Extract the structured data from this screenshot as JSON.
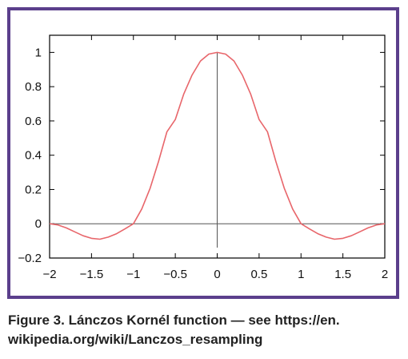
{
  "caption": {
    "line1": "Figure 3. Lánczos Kornél function — see https://en.",
    "line2": "wikipedia.org/wiki/Lanczos_resampling"
  },
  "colors": {
    "frame": "#5b3f8c",
    "curve": "#e8666b",
    "axis_line": "#555555"
  },
  "chart_data": {
    "type": "line",
    "title": "",
    "xlabel": "",
    "ylabel": "",
    "xlim": [
      -2,
      2
    ],
    "ylim": [
      -0.2,
      1.1
    ],
    "xticks": [
      "−2",
      "−1.5",
      "−1",
      "−0.5",
      "0",
      "0.5",
      "1",
      "1.5",
      "2"
    ],
    "yticks": [
      "−0.2",
      "0",
      "0.2",
      "0.4",
      "0.6",
      "0.8",
      "1"
    ],
    "grid": false,
    "zero_line": true,
    "series": [
      {
        "color": "#e8666b",
        "x": [
          -2,
          -1.9,
          -1.8,
          -1.7,
          -1.6,
          -1.5,
          -1.4,
          -1.3,
          -1.2,
          -1.1,
          -1,
          -0.9,
          -0.8,
          -0.7,
          -0.6,
          -0.5,
          -0.4,
          -0.3,
          -0.2,
          -0.1,
          0,
          0.1,
          0.2,
          0.3,
          0.4,
          0.5,
          0.6,
          0.7,
          0.8,
          0.9,
          1,
          1.1,
          1.2,
          1.3,
          1.4,
          1.5,
          1.6,
          1.7,
          1.8,
          1.9,
          2
        ],
        "y": [
          0,
          -0.007,
          -0.024,
          -0.047,
          -0.07,
          -0.085,
          -0.09,
          -0.078,
          -0.058,
          -0.03,
          0,
          0.086,
          0.208,
          0.364,
          0.536,
          0.608,
          0.756,
          0.868,
          0.95,
          0.99,
          1,
          0.99,
          0.95,
          0.868,
          0.756,
          0.608,
          0.536,
          0.364,
          0.208,
          0.086,
          0,
          -0.03,
          -0.058,
          -0.078,
          -0.09,
          -0.085,
          -0.07,
          -0.047,
          -0.024,
          -0.007,
          0
        ]
      }
    ]
  }
}
